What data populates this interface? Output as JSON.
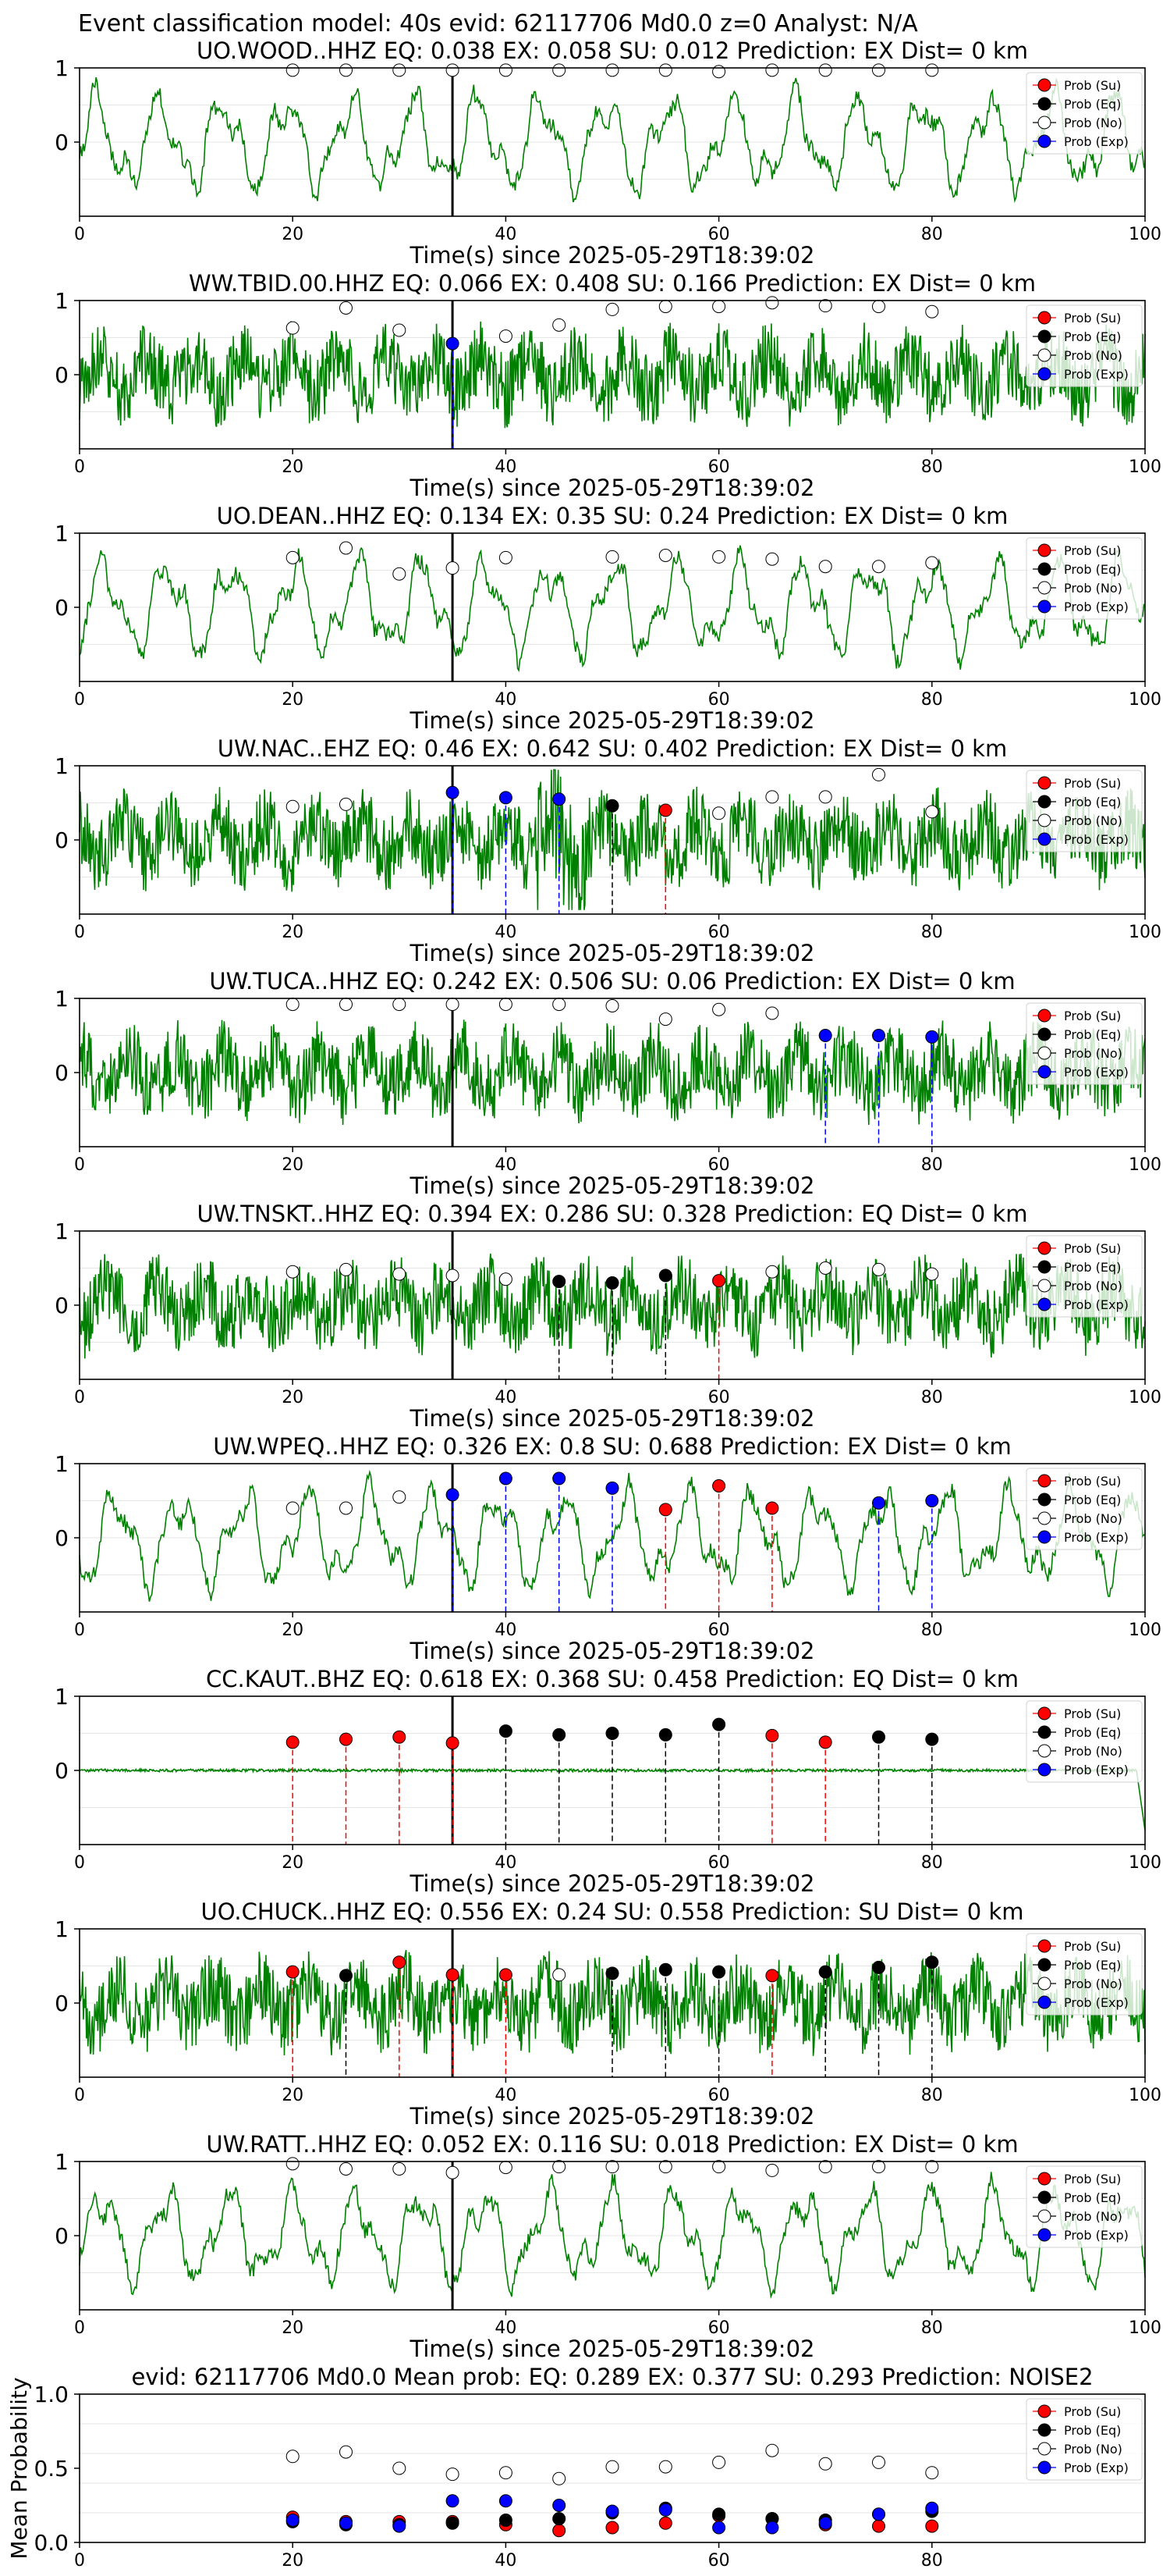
{
  "figure": {
    "suptitle": "Event classification model: 40s evid: 62117706 Md0.0 z=0 Analyst: N/A",
    "xlabel": "Time(s) since 2025-05-29T18:39:02",
    "legend": [
      "Prob (Su)",
      "Prob (Eq)",
      "Prob (No)",
      "Prob (Exp)"
    ],
    "colors": {
      "su": "#ff0000",
      "eq": "#000000",
      "no": "#ffffff",
      "exp": "#0000ff",
      "trace": "#008000",
      "su_line": "#ff0000",
      "eq_line": "#000000",
      "exp_line": "#0000ff"
    }
  },
  "chart_data": [
    {
      "type": "line",
      "title": "UO.WOOD..HHZ   EQ: 0.038  EX: 0.058  SU: 0.012   Prediction: EX    Dist= 0 km",
      "x_ticks": [
        0,
        20,
        40,
        60,
        80,
        100
      ],
      "y_ticks": [
        "1",
        "0"
      ],
      "xlim": [
        0,
        100
      ],
      "ylim": [
        -1,
        1
      ],
      "onset": 35,
      "trace_style": "smooth",
      "seed": 3,
      "points": [
        {
          "t": 20,
          "p": 0.97,
          "cls": "no"
        },
        {
          "t": 25,
          "p": 0.97,
          "cls": "no"
        },
        {
          "t": 30,
          "p": 0.97,
          "cls": "no"
        },
        {
          "t": 35,
          "p": 0.97,
          "cls": "no"
        },
        {
          "t": 40,
          "p": 0.97,
          "cls": "no"
        },
        {
          "t": 45,
          "p": 0.97,
          "cls": "no"
        },
        {
          "t": 50,
          "p": 0.97,
          "cls": "no"
        },
        {
          "t": 55,
          "p": 0.97,
          "cls": "no"
        },
        {
          "t": 60,
          "p": 0.95,
          "cls": "no"
        },
        {
          "t": 65,
          "p": 0.97,
          "cls": "no"
        },
        {
          "t": 70,
          "p": 0.97,
          "cls": "no"
        },
        {
          "t": 75,
          "p": 0.97,
          "cls": "no"
        },
        {
          "t": 80,
          "p": 0.97,
          "cls": "no"
        }
      ]
    },
    {
      "type": "line",
      "title": "WW.TBID.00.HHZ   EQ: 0.066  EX: 0.408  SU: 0.166   Prediction: EX    Dist= 0 km",
      "x_ticks": [
        0,
        20,
        40,
        60,
        80,
        100
      ],
      "y_ticks": [
        "1",
        "0"
      ],
      "xlim": [
        0,
        100
      ],
      "ylim": [
        -1,
        1
      ],
      "onset": 35,
      "trace_style": "noisy",
      "seed": 7,
      "points": [
        {
          "t": 20,
          "p": 0.63,
          "cls": "no"
        },
        {
          "t": 25,
          "p": 0.9,
          "cls": "no"
        },
        {
          "t": 30,
          "p": 0.6,
          "cls": "no"
        },
        {
          "t": 35,
          "p": 0.42,
          "cls": "exp"
        },
        {
          "t": 40,
          "p": 0.52,
          "cls": "no"
        },
        {
          "t": 45,
          "p": 0.67,
          "cls": "no"
        },
        {
          "t": 50,
          "p": 0.88,
          "cls": "no"
        },
        {
          "t": 55,
          "p": 0.92,
          "cls": "no"
        },
        {
          "t": 60,
          "p": 0.92,
          "cls": "no"
        },
        {
          "t": 65,
          "p": 0.97,
          "cls": "no"
        },
        {
          "t": 70,
          "p": 0.93,
          "cls": "no"
        },
        {
          "t": 75,
          "p": 0.92,
          "cls": "no"
        },
        {
          "t": 80,
          "p": 0.85,
          "cls": "no"
        }
      ]
    },
    {
      "type": "line",
      "title": "UO.DEAN..HHZ   EQ: 0.134  EX: 0.35  SU: 0.24   Prediction: EX    Dist= 0 km",
      "x_ticks": [
        0,
        20,
        40,
        60,
        80,
        100
      ],
      "y_ticks": [
        "1",
        "0"
      ],
      "xlim": [
        0,
        100
      ],
      "ylim": [
        -1,
        1
      ],
      "onset": 35,
      "trace_style": "smooth",
      "seed": 11,
      "points": [
        {
          "t": 20,
          "p": 0.67,
          "cls": "no"
        },
        {
          "t": 25,
          "p": 0.8,
          "cls": "no"
        },
        {
          "t": 30,
          "p": 0.45,
          "cls": "no"
        },
        {
          "t": 35,
          "p": 0.53,
          "cls": "no"
        },
        {
          "t": 40,
          "p": 0.67,
          "cls": "no"
        },
        {
          "t": 50,
          "p": 0.68,
          "cls": "no"
        },
        {
          "t": 55,
          "p": 0.7,
          "cls": "no"
        },
        {
          "t": 60,
          "p": 0.68,
          "cls": "no"
        },
        {
          "t": 65,
          "p": 0.65,
          "cls": "no"
        },
        {
          "t": 70,
          "p": 0.55,
          "cls": "no"
        },
        {
          "t": 75,
          "p": 0.55,
          "cls": "no"
        },
        {
          "t": 80,
          "p": 0.6,
          "cls": "no"
        }
      ]
    },
    {
      "type": "line",
      "title": "UW.NAC..EHZ   EQ: 0.46  EX: 0.642  SU: 0.402   Prediction: EX    Dist= 0 km",
      "x_ticks": [
        0,
        20,
        40,
        60,
        80,
        100
      ],
      "y_ticks": [
        "1",
        "0"
      ],
      "xlim": [
        0,
        100
      ],
      "ylim": [
        -1,
        1
      ],
      "onset": 35,
      "trace_style": "burst",
      "burst": [
        43,
        48
      ],
      "seed": 13,
      "points": [
        {
          "t": 20,
          "p": 0.45,
          "cls": "no"
        },
        {
          "t": 25,
          "p": 0.48,
          "cls": "no"
        },
        {
          "t": 35,
          "p": 0.64,
          "cls": "exp"
        },
        {
          "t": 40,
          "p": 0.57,
          "cls": "exp"
        },
        {
          "t": 45,
          "p": 0.55,
          "cls": "exp"
        },
        {
          "t": 50,
          "p": 0.46,
          "cls": "eq"
        },
        {
          "t": 55,
          "p": 0.4,
          "cls": "su"
        },
        {
          "t": 60,
          "p": 0.36,
          "cls": "no"
        },
        {
          "t": 65,
          "p": 0.58,
          "cls": "no"
        },
        {
          "t": 70,
          "p": 0.58,
          "cls": "no"
        },
        {
          "t": 75,
          "p": 0.88,
          "cls": "no"
        },
        {
          "t": 80,
          "p": 0.38,
          "cls": "no"
        }
      ]
    },
    {
      "type": "line",
      "title": "UW.TUCA..HHZ   EQ: 0.242  EX: 0.506  SU: 0.06   Prediction: EX    Dist= 0 km",
      "x_ticks": [
        0,
        20,
        40,
        60,
        80,
        100
      ],
      "y_ticks": [
        "1",
        "0"
      ],
      "xlim": [
        0,
        100
      ],
      "ylim": [
        -1,
        1
      ],
      "onset": 35,
      "trace_style": "noisy",
      "seed": 17,
      "points": [
        {
          "t": 20,
          "p": 0.92,
          "cls": "no"
        },
        {
          "t": 25,
          "p": 0.92,
          "cls": "no"
        },
        {
          "t": 30,
          "p": 0.92,
          "cls": "no"
        },
        {
          "t": 35,
          "p": 0.92,
          "cls": "no"
        },
        {
          "t": 40,
          "p": 0.92,
          "cls": "no"
        },
        {
          "t": 45,
          "p": 0.92,
          "cls": "no"
        },
        {
          "t": 50,
          "p": 0.9,
          "cls": "no"
        },
        {
          "t": 55,
          "p": 0.72,
          "cls": "no"
        },
        {
          "t": 60,
          "p": 0.85,
          "cls": "no"
        },
        {
          "t": 65,
          "p": 0.8,
          "cls": "no"
        },
        {
          "t": 70,
          "p": 0.5,
          "cls": "exp"
        },
        {
          "t": 75,
          "p": 0.5,
          "cls": "exp"
        },
        {
          "t": 80,
          "p": 0.48,
          "cls": "exp"
        }
      ]
    },
    {
      "type": "line",
      "title": "UW.TNSKT..HHZ   EQ: 0.394  EX: 0.286  SU: 0.328   Prediction: EQ    Dist= 0 km",
      "x_ticks": [
        0,
        20,
        40,
        60,
        80,
        100
      ],
      "y_ticks": [
        "1",
        "0"
      ],
      "xlim": [
        0,
        100
      ],
      "ylim": [
        -1,
        1
      ],
      "onset": 35,
      "trace_style": "noisy",
      "seed": 19,
      "points": [
        {
          "t": 20,
          "p": 0.45,
          "cls": "no"
        },
        {
          "t": 25,
          "p": 0.48,
          "cls": "no"
        },
        {
          "t": 30,
          "p": 0.42,
          "cls": "no"
        },
        {
          "t": 35,
          "p": 0.4,
          "cls": "no"
        },
        {
          "t": 40,
          "p": 0.35,
          "cls": "no"
        },
        {
          "t": 45,
          "p": 0.32,
          "cls": "eq"
        },
        {
          "t": 50,
          "p": 0.3,
          "cls": "eq"
        },
        {
          "t": 55,
          "p": 0.4,
          "cls": "eq"
        },
        {
          "t": 60,
          "p": 0.33,
          "cls": "su"
        },
        {
          "t": 65,
          "p": 0.45,
          "cls": "no"
        },
        {
          "t": 70,
          "p": 0.5,
          "cls": "no"
        },
        {
          "t": 75,
          "p": 0.48,
          "cls": "no"
        },
        {
          "t": 80,
          "p": 0.42,
          "cls": "no"
        }
      ]
    },
    {
      "type": "line",
      "title": "UW.WPEQ..HHZ   EQ: 0.326  EX: 0.8  SU: 0.688   Prediction: EX    Dist= 0 km",
      "x_ticks": [
        0,
        20,
        40,
        60,
        80,
        100
      ],
      "y_ticks": [
        "1",
        "0"
      ],
      "xlim": [
        0,
        100
      ],
      "ylim": [
        -1,
        1
      ],
      "onset": 35,
      "trace_style": "smooth",
      "seed": 23,
      "points": [
        {
          "t": 20,
          "p": 0.4,
          "cls": "no"
        },
        {
          "t": 25,
          "p": 0.4,
          "cls": "no"
        },
        {
          "t": 30,
          "p": 0.55,
          "cls": "no"
        },
        {
          "t": 35,
          "p": 0.58,
          "cls": "exp"
        },
        {
          "t": 40,
          "p": 0.8,
          "cls": "exp"
        },
        {
          "t": 45,
          "p": 0.8,
          "cls": "exp"
        },
        {
          "t": 50,
          "p": 0.67,
          "cls": "exp"
        },
        {
          "t": 55,
          "p": 0.38,
          "cls": "su"
        },
        {
          "t": 60,
          "p": 0.7,
          "cls": "su"
        },
        {
          "t": 65,
          "p": 0.4,
          "cls": "su"
        },
        {
          "t": 75,
          "p": 0.47,
          "cls": "exp"
        },
        {
          "t": 80,
          "p": 0.5,
          "cls": "exp"
        }
      ]
    },
    {
      "type": "line",
      "title": "CC.KAUT..BHZ   EQ: 0.618  EX: 0.368  SU: 0.458   Prediction: EQ    Dist= 0 km",
      "x_ticks": [
        0,
        20,
        40,
        60,
        80,
        100
      ],
      "y_ticks": [
        "1",
        "0"
      ],
      "xlim": [
        0,
        100
      ],
      "ylim": [
        -1,
        1
      ],
      "onset": 35,
      "trace_style": "flat",
      "seed": 29,
      "points": [
        {
          "t": 20,
          "p": 0.38,
          "cls": "su"
        },
        {
          "t": 25,
          "p": 0.42,
          "cls": "su"
        },
        {
          "t": 30,
          "p": 0.45,
          "cls": "su"
        },
        {
          "t": 35,
          "p": 0.37,
          "cls": "su"
        },
        {
          "t": 40,
          "p": 0.53,
          "cls": "eq"
        },
        {
          "t": 45,
          "p": 0.48,
          "cls": "eq"
        },
        {
          "t": 50,
          "p": 0.5,
          "cls": "eq"
        },
        {
          "t": 55,
          "p": 0.48,
          "cls": "eq"
        },
        {
          "t": 60,
          "p": 0.62,
          "cls": "eq"
        },
        {
          "t": 65,
          "p": 0.47,
          "cls": "su"
        },
        {
          "t": 70,
          "p": 0.38,
          "cls": "su"
        },
        {
          "t": 75,
          "p": 0.45,
          "cls": "eq"
        },
        {
          "t": 80,
          "p": 0.42,
          "cls": "eq"
        }
      ]
    },
    {
      "type": "line",
      "title": "UO.CHUCK..HHZ   EQ: 0.556  EX: 0.24  SU: 0.558   Prediction: SU    Dist= 0 km",
      "x_ticks": [
        0,
        20,
        40,
        60,
        80,
        100
      ],
      "y_ticks": [
        "1",
        "0"
      ],
      "xlim": [
        0,
        100
      ],
      "ylim": [
        -1,
        1
      ],
      "onset": 35,
      "trace_style": "noisy",
      "seed": 31,
      "points": [
        {
          "t": 20,
          "p": 0.42,
          "cls": "su"
        },
        {
          "t": 25,
          "p": 0.37,
          "cls": "eq"
        },
        {
          "t": 30,
          "p": 0.55,
          "cls": "su"
        },
        {
          "t": 35,
          "p": 0.38,
          "cls": "su"
        },
        {
          "t": 40,
          "p": 0.38,
          "cls": "su"
        },
        {
          "t": 45,
          "p": 0.38,
          "cls": "no"
        },
        {
          "t": 50,
          "p": 0.4,
          "cls": "eq"
        },
        {
          "t": 55,
          "p": 0.45,
          "cls": "eq"
        },
        {
          "t": 60,
          "p": 0.42,
          "cls": "eq"
        },
        {
          "t": 65,
          "p": 0.37,
          "cls": "su"
        },
        {
          "t": 70,
          "p": 0.42,
          "cls": "eq"
        },
        {
          "t": 75,
          "p": 0.48,
          "cls": "eq"
        },
        {
          "t": 80,
          "p": 0.55,
          "cls": "eq"
        }
      ]
    },
    {
      "type": "line",
      "title": "UW.RATT..HHZ   EQ: 0.052  EX: 0.116  SU: 0.018   Prediction: EX    Dist= 0 km",
      "x_ticks": [
        0,
        20,
        40,
        60,
        80,
        100
      ],
      "y_ticks": [
        "1",
        "0"
      ],
      "xlim": [
        0,
        100
      ],
      "ylim": [
        -1,
        1
      ],
      "onset": 35,
      "trace_style": "smooth",
      "seed": 37,
      "points": [
        {
          "t": 20,
          "p": 0.97,
          "cls": "no"
        },
        {
          "t": 25,
          "p": 0.9,
          "cls": "no"
        },
        {
          "t": 30,
          "p": 0.9,
          "cls": "no"
        },
        {
          "t": 35,
          "p": 0.85,
          "cls": "no"
        },
        {
          "t": 40,
          "p": 0.92,
          "cls": "no"
        },
        {
          "t": 45,
          "p": 0.93,
          "cls": "no"
        },
        {
          "t": 50,
          "p": 0.93,
          "cls": "no"
        },
        {
          "t": 55,
          "p": 0.93,
          "cls": "no"
        },
        {
          "t": 60,
          "p": 0.93,
          "cls": "no"
        },
        {
          "t": 65,
          "p": 0.88,
          "cls": "no"
        },
        {
          "t": 70,
          "p": 0.93,
          "cls": "no"
        },
        {
          "t": 75,
          "p": 0.93,
          "cls": "no"
        },
        {
          "t": 80,
          "p": 0.93,
          "cls": "no"
        }
      ]
    },
    {
      "type": "scatter",
      "title": "evid: 62117706  Md0.0   Mean prob:   EQ: 0.289  EX: 0.377  SU: 0.293   Prediction: NOISE2",
      "ylabel": "Mean Probability",
      "x_ticks": [
        0,
        20,
        40,
        60,
        80
      ],
      "y_ticks": [
        "1.0",
        "0.5",
        "0.0"
      ],
      "xlim": [
        0,
        100
      ],
      "ylim": [
        0,
        1
      ],
      "series": [
        {
          "name": "Prob (Su)",
          "cls": "su",
          "x": [
            20,
            25,
            30,
            35,
            40,
            45,
            50,
            55,
            60,
            65,
            70,
            75,
            80
          ],
          "values": [
            0.17,
            0.14,
            0.14,
            0.14,
            0.12,
            0.08,
            0.1,
            0.13,
            0.18,
            0.16,
            0.12,
            0.11,
            0.11
          ]
        },
        {
          "name": "Prob (Eq)",
          "cls": "eq",
          "x": [
            20,
            25,
            30,
            35,
            40,
            45,
            50,
            55,
            60,
            65,
            70,
            75,
            80
          ],
          "values": [
            0.14,
            0.12,
            0.12,
            0.13,
            0.15,
            0.16,
            0.2,
            0.23,
            0.19,
            0.16,
            0.15,
            0.19,
            0.21
          ]
        },
        {
          "name": "Prob (No)",
          "cls": "no",
          "x": [
            20,
            25,
            30,
            35,
            40,
            45,
            50,
            55,
            60,
            65,
            70,
            75,
            80
          ],
          "values": [
            0.58,
            0.61,
            0.5,
            0.46,
            0.47,
            0.43,
            0.51,
            0.51,
            0.54,
            0.62,
            0.53,
            0.54,
            0.47
          ]
        },
        {
          "name": "Prob (Exp)",
          "cls": "exp",
          "x": [
            20,
            25,
            30,
            35,
            40,
            45,
            50,
            55,
            60,
            65,
            70,
            75,
            80
          ],
          "values": [
            0.15,
            0.13,
            0.11,
            0.28,
            0.28,
            0.25,
            0.21,
            0.22,
            0.1,
            0.1,
            0.13,
            0.19,
            0.23
          ]
        }
      ]
    }
  ]
}
